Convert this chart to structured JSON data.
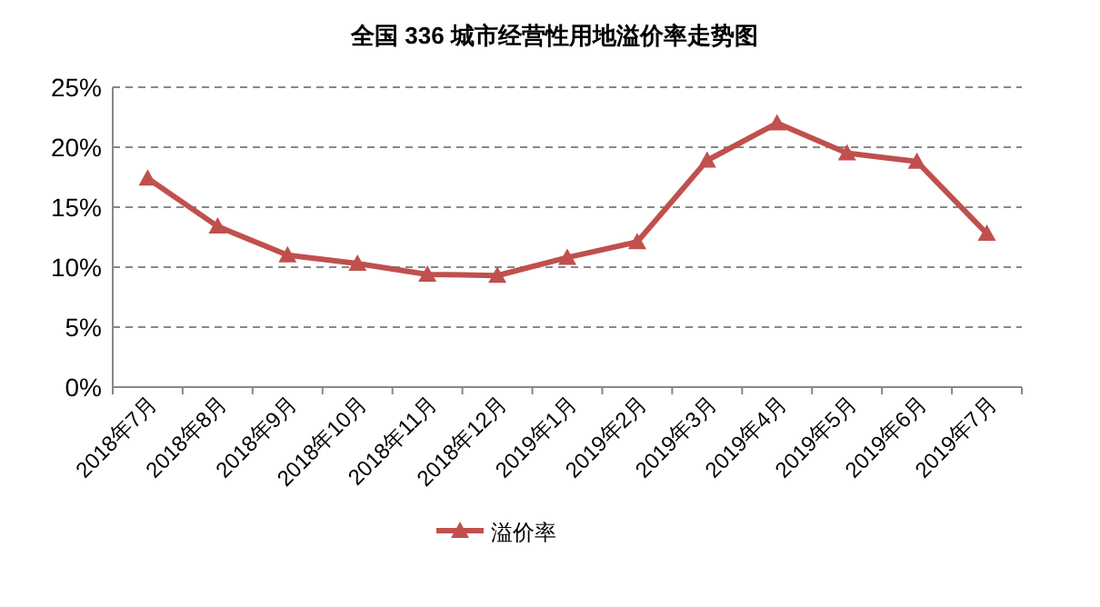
{
  "chart_data": {
    "type": "line",
    "title": "全国 336 城市经营性用地溢价率走势图",
    "categories": [
      "2018年7月",
      "2018年8月",
      "2018年9月",
      "2018年10月",
      "2018年11月",
      "2018年12月",
      "2019年1月",
      "2019年2月",
      "2019年3月",
      "2019年4月",
      "2019年5月",
      "2019年6月",
      "2019年7月"
    ],
    "series": [
      {
        "name": "溢价率",
        "color": "#c0504d",
        "values": [
          17.4,
          13.4,
          11.0,
          10.3,
          9.4,
          9.3,
          10.8,
          12.1,
          18.9,
          22.0,
          19.5,
          18.8,
          12.8
        ]
      }
    ],
    "ylim": [
      0,
      25
    ],
    "yticks": [
      {
        "value": 0,
        "label": "0%"
      },
      {
        "value": 5,
        "label": "5%"
      },
      {
        "value": 10,
        "label": "10%"
      },
      {
        "value": 15,
        "label": "15%"
      },
      {
        "value": 20,
        "label": "20%"
      },
      {
        "value": 25,
        "label": "25%"
      }
    ],
    "grid": "y",
    "legend": "bottom",
    "marker": "triangle",
    "line_style": "solid"
  }
}
